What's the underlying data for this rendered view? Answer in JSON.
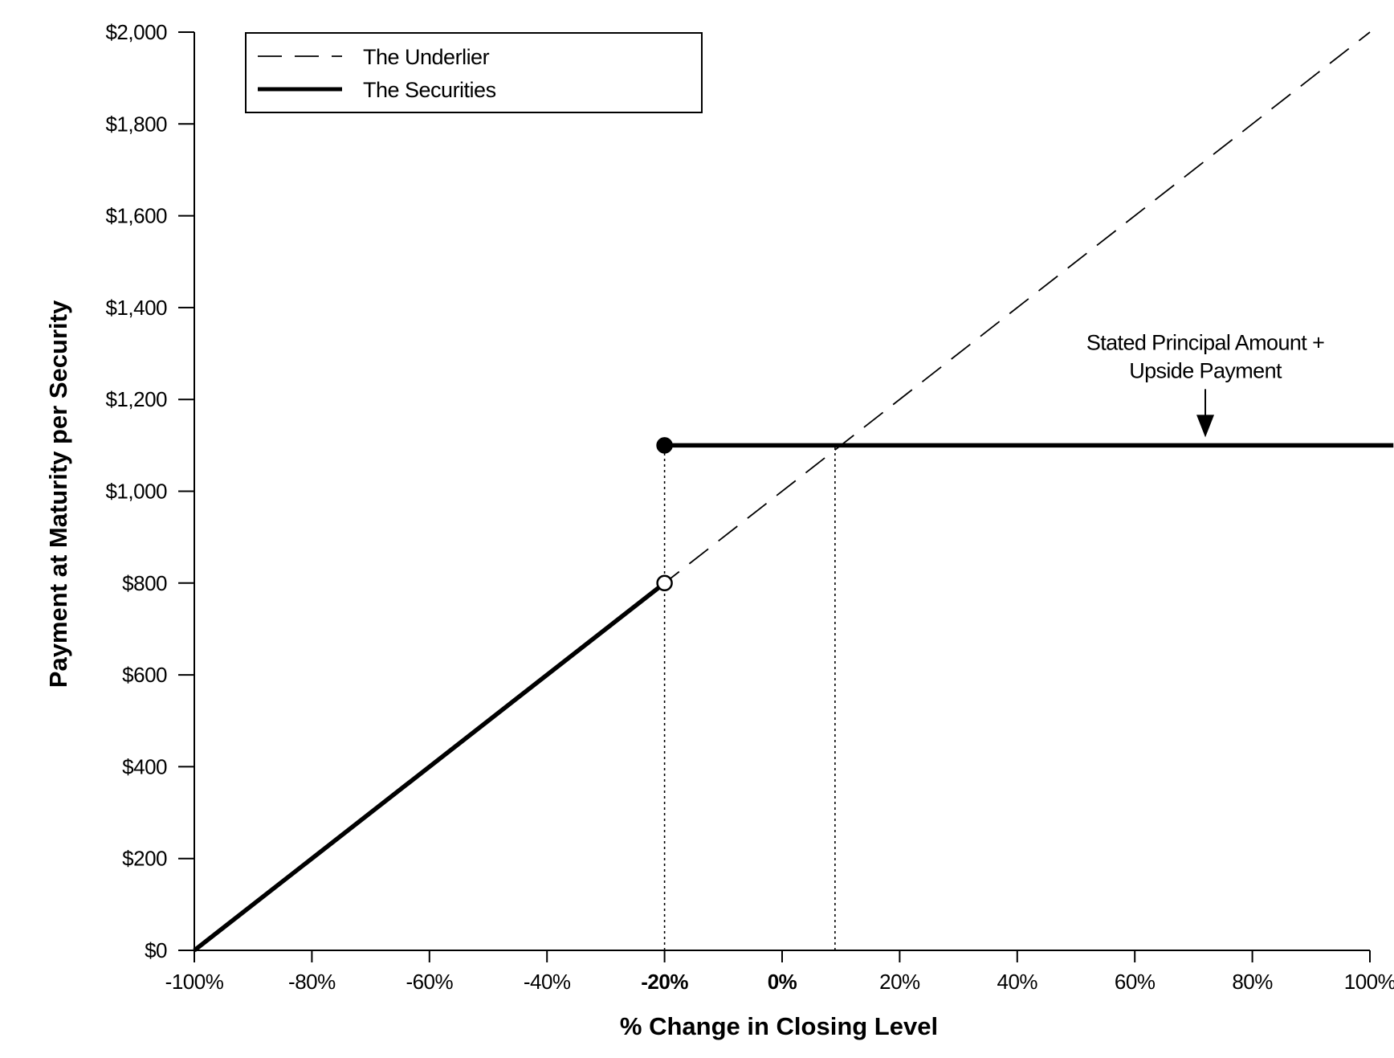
{
  "chart_data": {
    "type": "line",
    "xlabel": "% Change in Closing Level",
    "ylabel": "Payment at Maturity per Security",
    "xlim": [
      -100,
      100
    ],
    "ylim": [
      0,
      2000
    ],
    "x_ticks": [
      {
        "value": -100,
        "label": "-100%",
        "bold": false
      },
      {
        "value": -80,
        "label": "-80%",
        "bold": false
      },
      {
        "value": -60,
        "label": "-60%",
        "bold": false
      },
      {
        "value": -40,
        "label": "-40%",
        "bold": false
      },
      {
        "value": -20,
        "label": "-20%",
        "bold": true
      },
      {
        "value": 0,
        "label": "0%",
        "bold": true
      },
      {
        "value": 20,
        "label": "20%",
        "bold": false
      },
      {
        "value": 40,
        "label": "40%",
        "bold": false
      },
      {
        "value": 60,
        "label": "60%",
        "bold": false
      },
      {
        "value": 80,
        "label": "80%",
        "bold": false
      },
      {
        "value": 100,
        "label": "100%",
        "bold": false
      }
    ],
    "y_ticks": [
      {
        "value": 0,
        "label": "$0"
      },
      {
        "value": 200,
        "label": "$200"
      },
      {
        "value": 400,
        "label": "$400"
      },
      {
        "value": 600,
        "label": "$600"
      },
      {
        "value": 800,
        "label": "$800"
      },
      {
        "value": 1000,
        "label": "$1,000"
      },
      {
        "value": 1200,
        "label": "$1,200"
      },
      {
        "value": 1400,
        "label": "$1,400"
      },
      {
        "value": 1600,
        "label": "$1,600"
      },
      {
        "value": 1800,
        "label": "$1,800"
      },
      {
        "value": 2000,
        "label": "$2,000"
      }
    ],
    "series": [
      {
        "name": "The Underlier",
        "style": "dashed",
        "points": [
          {
            "x": -100,
            "y": 0
          },
          {
            "x": 100,
            "y": 2000
          }
        ]
      },
      {
        "name": "The Securities",
        "style": "solid-thick",
        "segments": [
          [
            {
              "x": -100,
              "y": 0
            },
            {
              "x": -20,
              "y": 800
            }
          ],
          [
            {
              "x": -20,
              "y": 1100
            },
            {
              "x": 104,
              "y": 1100
            }
          ]
        ]
      }
    ],
    "markers": [
      {
        "x": -20,
        "y": 1100,
        "fill": "filled"
      },
      {
        "x": -20,
        "y": 800,
        "fill": "open"
      }
    ],
    "reference_lines": [
      {
        "x": -20,
        "y_from": 0,
        "y_to": 1100,
        "style": "dotted"
      },
      {
        "x": 9,
        "y_from": 0,
        "y_to": 1100,
        "style": "dotted"
      }
    ],
    "annotation": {
      "lines": [
        "Stated Principal Amount +",
        "Upside Payment"
      ],
      "arrow_x": 72,
      "arrow_to_y": 1100
    },
    "legend": {
      "position": "top-left",
      "entries": [
        {
          "label": "The Underlier",
          "style": "dashed"
        },
        {
          "label": "The Securities",
          "style": "solid-thick"
        }
      ]
    },
    "colors": {
      "line": "#000000",
      "background": "#ffffff"
    },
    "grid": false
  }
}
